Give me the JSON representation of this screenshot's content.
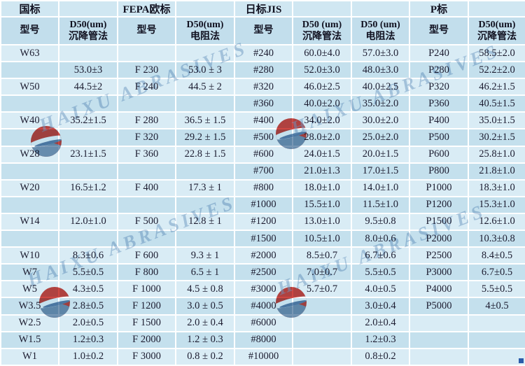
{
  "watermark": {
    "text": "HAIXU ABRASIVES"
  },
  "table": {
    "group_row": [
      "国标",
      "",
      "FEPA欧标",
      "",
      "日标JIS",
      "",
      "",
      "P标",
      ""
    ],
    "column_row": [
      "型号",
      "D50(um)\n沉降管法",
      "型号",
      "D50(um)\n电阻法",
      "型号",
      "D50 (um)\n沉降管法",
      "D50 (um)\n电阻法",
      "型号",
      "D50(um)\n沉降管法"
    ],
    "rows": [
      [
        "W63",
        "",
        "",
        "",
        "#240",
        "60.0±4.0",
        "57.0±3.0",
        "P240",
        "58.5±2.0"
      ],
      [
        "",
        "53.0±3",
        "F 230",
        "53.0 ± 3",
        "#280",
        "52.0±3.0",
        "48.0±3.0",
        "P280",
        "52.2±2.0"
      ],
      [
        "W50",
        "44.5±2",
        "F 240",
        "44.5 ± 2",
        "#320",
        "46.0±2.5",
        "40.0±2.5",
        "P320",
        "46.2±1.5"
      ],
      [
        "",
        "",
        "",
        "",
        "#360",
        "40.0±2.0",
        "35.0±2.0",
        "P360",
        "40.5±1.5"
      ],
      [
        "W40",
        "35.2±1.5",
        "F 280",
        "36.5 ± 1.5",
        "#400",
        "34.0±2.0",
        "30.0±2.0",
        "P400",
        "35.0±1.5"
      ],
      [
        "",
        "",
        "F 320",
        "29.2 ± 1.5",
        "#500",
        "28.0±2.0",
        "25.0±2.0",
        "P500",
        "30.2±1.5"
      ],
      [
        "W28",
        "23.1±1.5",
        "F 360",
        "22.8 ± 1.5",
        "#600",
        "24.0±1.5",
        "20.0±1.5",
        "P600",
        "25.8±1.0"
      ],
      [
        "",
        "",
        "",
        "",
        "#700",
        "21.0±1.3",
        "17.0±1.5",
        "P800",
        "21.8±1.0"
      ],
      [
        "W20",
        "16.5±1.2",
        "F 400",
        "17.3 ± 1",
        "#800",
        "18.0±1.0",
        "14.0±1.0",
        "P1000",
        "18.3±1.0"
      ],
      [
        "",
        "",
        "",
        "",
        "#1000",
        "15.5±1.0",
        "11.5±1.0",
        "P1200",
        "15.3±1.0"
      ],
      [
        "W14",
        "12.0±1.0",
        "F 500",
        "12.8 ± 1",
        "#1200",
        "13.0±1.0",
        "9.5±0.8",
        "P1500",
        "12.6±1.0"
      ],
      [
        "",
        "",
        "",
        "",
        "#1500",
        "10.5±1.0",
        "8.0±0.6",
        "P2000",
        "10.3±0.8"
      ],
      [
        "W10",
        "8.3±0.6",
        "F 600",
        "9.3 ± 1",
        "#2000",
        "8.5±0.7",
        "6.7±0.6",
        "P2500",
        "8.4±0.5"
      ],
      [
        "W7",
        "5.5±0.5",
        "F 800",
        "6.5 ± 1",
        "#2500",
        "7.0±0.7",
        "5.5±0.5",
        "P3000",
        "6.7±0.5"
      ],
      [
        "W5",
        "4.3±0.5",
        "F 1000",
        "4.5 ± 0.8",
        "#3000",
        "5.7±0.7",
        "4.0±0.5",
        "P4000",
        "5.5±0.5"
      ],
      [
        "W3.5",
        "2.8±0.5",
        "F 1200",
        "3.0 ± 0.5",
        "#4000",
        "",
        "3.0±0.4",
        "P5000",
        "4±0.5"
      ],
      [
        "W2.5",
        "2.0±0.5",
        "F 1500",
        "2.0 ± 0.4",
        "#6000",
        "",
        "2.0±0.4",
        "",
        ""
      ],
      [
        "W1.5",
        "1.2±0.3",
        "F 2000",
        "1.2 ± 0.3",
        "#8000",
        "",
        "1.2±0.3",
        "",
        ""
      ],
      [
        "W1",
        "1.0±0.2",
        "F 3000",
        "0.8 ± 0.2",
        "#10000",
        "",
        "0.8±0.2",
        "",
        ""
      ]
    ]
  },
  "colors": {
    "row_light": "#d9ecf5",
    "row_dark": "#c4e0ed",
    "header_group_bg": "#d0e7f2",
    "header_cols_bg": "#c2deec",
    "grid": "#ffffff",
    "text": "#1c1c30",
    "header_text": "#10101f",
    "watermark_text": "#7fa3c8",
    "logo_red": "#c9342e",
    "logo_blue": "#6b8cac",
    "logo_swoosh": "#4f79a5",
    "handle_blue": "#2b5caa"
  }
}
